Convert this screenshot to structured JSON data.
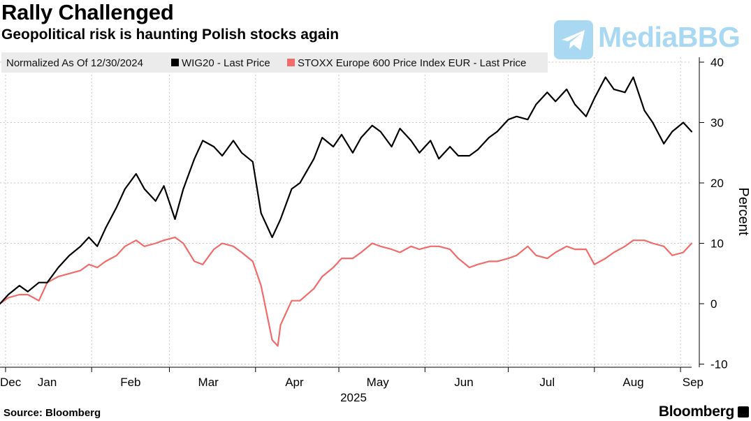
{
  "header": {
    "title": "Rally Challenged",
    "subtitle": "Geopolitical risk is haunting Polish stocks again"
  },
  "watermark": {
    "text": "MediaBBG",
    "icon": "telegram-plane-icon",
    "color": "#a9d8f2"
  },
  "footer": {
    "source": "Source: Bloomberg",
    "brand": "Bloomberg"
  },
  "chart_data": {
    "type": "line",
    "normalization_note": "Normalized As Of 12/30/2024",
    "ylabel": "Percent",
    "ylim": [
      -10,
      40
    ],
    "yticks": [
      -10,
      0,
      10,
      20,
      30,
      40
    ],
    "grid": true,
    "legend_placement": "top-left",
    "x_start": "2024-12-30",
    "x_end": "2025-09-05",
    "x_month_labels": [
      {
        "label": "Dec",
        "date": "2024-12-30"
      },
      {
        "label": "Jan",
        "date": "2025-01-16"
      },
      {
        "label": "Feb",
        "date": "2025-02-15"
      },
      {
        "label": "Mar",
        "date": "2025-03-15"
      },
      {
        "label": "Apr",
        "date": "2025-04-15"
      },
      {
        "label": "May",
        "date": "2025-05-15"
      },
      {
        "label": "Jun",
        "date": "2025-06-15"
      },
      {
        "label": "Jul",
        "date": "2025-07-15"
      },
      {
        "label": "Aug",
        "date": "2025-08-15"
      },
      {
        "label": "Sep",
        "date": "2025-09-05"
      }
    ],
    "x_gridlines": [
      "2025-01-01",
      "2025-02-01",
      "2025-03-01",
      "2025-04-01",
      "2025-05-01",
      "2025-06-01",
      "2025-07-01",
      "2025-08-01",
      "2025-09-01"
    ],
    "year_label": "2025",
    "series": [
      {
        "name": "WIG20 - Last Price",
        "color": "#000000",
        "points": [
          [
            "2024-12-30",
            0
          ],
          [
            "2025-01-02",
            1.5
          ],
          [
            "2025-01-06",
            3
          ],
          [
            "2025-01-09",
            2
          ],
          [
            "2025-01-13",
            3.5
          ],
          [
            "2025-01-16",
            3.5
          ],
          [
            "2025-01-20",
            6
          ],
          [
            "2025-01-24",
            8
          ],
          [
            "2025-01-28",
            9.5
          ],
          [
            "2025-01-31",
            11
          ],
          [
            "2025-02-03",
            9.5
          ],
          [
            "2025-02-06",
            12.5
          ],
          [
            "2025-02-10",
            16
          ],
          [
            "2025-02-13",
            19
          ],
          [
            "2025-02-17",
            21.5
          ],
          [
            "2025-02-20",
            19
          ],
          [
            "2025-02-24",
            17
          ],
          [
            "2025-02-27",
            19.5
          ],
          [
            "2025-03-03",
            14
          ],
          [
            "2025-03-06",
            19
          ],
          [
            "2025-03-10",
            24
          ],
          [
            "2025-03-13",
            27
          ],
          [
            "2025-03-17",
            26
          ],
          [
            "2025-03-20",
            24.5
          ],
          [
            "2025-03-24",
            27
          ],
          [
            "2025-03-27",
            25
          ],
          [
            "2025-03-31",
            23.5
          ],
          [
            "2025-04-03",
            15
          ],
          [
            "2025-04-07",
            11
          ],
          [
            "2025-04-10",
            14
          ],
          [
            "2025-04-14",
            19
          ],
          [
            "2025-04-17",
            20
          ],
          [
            "2025-04-22",
            24
          ],
          [
            "2025-04-25",
            27.5
          ],
          [
            "2025-04-29",
            26
          ],
          [
            "2025-05-02",
            28
          ],
          [
            "2025-05-06",
            25
          ],
          [
            "2025-05-09",
            27.5
          ],
          [
            "2025-05-13",
            29.5
          ],
          [
            "2025-05-16",
            28.5
          ],
          [
            "2025-05-20",
            26
          ],
          [
            "2025-05-23",
            29
          ],
          [
            "2025-05-27",
            27
          ],
          [
            "2025-05-30",
            25
          ],
          [
            "2025-06-03",
            27
          ],
          [
            "2025-06-06",
            24
          ],
          [
            "2025-06-10",
            26
          ],
          [
            "2025-06-13",
            24.5
          ],
          [
            "2025-06-17",
            24.5
          ],
          [
            "2025-06-20",
            25.5
          ],
          [
            "2025-06-24",
            27.5
          ],
          [
            "2025-06-27",
            28.5
          ],
          [
            "2025-07-01",
            30.5
          ],
          [
            "2025-07-04",
            31
          ],
          [
            "2025-07-08",
            30.5
          ],
          [
            "2025-07-11",
            33
          ],
          [
            "2025-07-15",
            35
          ],
          [
            "2025-07-18",
            33.5
          ],
          [
            "2025-07-22",
            35.5
          ],
          [
            "2025-07-25",
            33
          ],
          [
            "2025-07-29",
            31
          ],
          [
            "2025-08-01",
            34
          ],
          [
            "2025-08-05",
            37.5
          ],
          [
            "2025-08-08",
            35.5
          ],
          [
            "2025-08-12",
            35
          ],
          [
            "2025-08-15",
            37.5
          ],
          [
            "2025-08-19",
            32
          ],
          [
            "2025-08-22",
            30
          ],
          [
            "2025-08-26",
            26.5
          ],
          [
            "2025-08-29",
            28.5
          ],
          [
            "2025-09-02",
            30
          ],
          [
            "2025-09-05",
            28.5
          ]
        ]
      },
      {
        "name": "STOXX Europe 600 Price Index EUR - Last Price",
        "color": "#f26b6b",
        "points": [
          [
            "2024-12-30",
            0
          ],
          [
            "2025-01-02",
            1
          ],
          [
            "2025-01-06",
            1.5
          ],
          [
            "2025-01-09",
            1.5
          ],
          [
            "2025-01-13",
            0.5
          ],
          [
            "2025-01-16",
            3.5
          ],
          [
            "2025-01-20",
            4.5
          ],
          [
            "2025-01-24",
            5
          ],
          [
            "2025-01-28",
            5.5
          ],
          [
            "2025-01-31",
            6.5
          ],
          [
            "2025-02-03",
            6
          ],
          [
            "2025-02-06",
            7
          ],
          [
            "2025-02-10",
            8
          ],
          [
            "2025-02-13",
            9.5
          ],
          [
            "2025-02-17",
            10.5
          ],
          [
            "2025-02-20",
            9.5
          ],
          [
            "2025-02-24",
            10
          ],
          [
            "2025-02-27",
            10.5
          ],
          [
            "2025-03-03",
            11
          ],
          [
            "2025-03-06",
            10
          ],
          [
            "2025-03-10",
            7
          ],
          [
            "2025-03-13",
            6.5
          ],
          [
            "2025-03-17",
            9
          ],
          [
            "2025-03-20",
            10
          ],
          [
            "2025-03-24",
            9.5
          ],
          [
            "2025-03-27",
            8.5
          ],
          [
            "2025-03-31",
            7
          ],
          [
            "2025-04-03",
            3
          ],
          [
            "2025-04-07",
            -6
          ],
          [
            "2025-04-09",
            -7
          ],
          [
            "2025-04-10",
            -3.5
          ],
          [
            "2025-04-14",
            0.5
          ],
          [
            "2025-04-17",
            0.5
          ],
          [
            "2025-04-22",
            2.5
          ],
          [
            "2025-04-25",
            4.5
          ],
          [
            "2025-04-29",
            6
          ],
          [
            "2025-05-02",
            7.5
          ],
          [
            "2025-05-06",
            7.5
          ],
          [
            "2025-05-09",
            8.5
          ],
          [
            "2025-05-13",
            10
          ],
          [
            "2025-05-16",
            9.5
          ],
          [
            "2025-05-20",
            9
          ],
          [
            "2025-05-23",
            8.5
          ],
          [
            "2025-05-27",
            9.5
          ],
          [
            "2025-05-30",
            9
          ],
          [
            "2025-06-03",
            9.5
          ],
          [
            "2025-06-06",
            9.5
          ],
          [
            "2025-06-10",
            9
          ],
          [
            "2025-06-13",
            7.5
          ],
          [
            "2025-06-17",
            6
          ],
          [
            "2025-06-20",
            6.5
          ],
          [
            "2025-06-24",
            7
          ],
          [
            "2025-06-27",
            7
          ],
          [
            "2025-07-01",
            7.5
          ],
          [
            "2025-07-04",
            8
          ],
          [
            "2025-07-08",
            9.5
          ],
          [
            "2025-07-11",
            8
          ],
          [
            "2025-07-15",
            7.5
          ],
          [
            "2025-07-18",
            8.5
          ],
          [
            "2025-07-22",
            9.5
          ],
          [
            "2025-07-25",
            9
          ],
          [
            "2025-07-29",
            9
          ],
          [
            "2025-08-01",
            6.5
          ],
          [
            "2025-08-05",
            7.5
          ],
          [
            "2025-08-08",
            8.5
          ],
          [
            "2025-08-12",
            9.5
          ],
          [
            "2025-08-15",
            10.5
          ],
          [
            "2025-08-19",
            10.5
          ],
          [
            "2025-08-22",
            10
          ],
          [
            "2025-08-26",
            9.5
          ],
          [
            "2025-08-29",
            8
          ],
          [
            "2025-09-02",
            8.5
          ],
          [
            "2025-09-05",
            10
          ]
        ]
      }
    ]
  }
}
